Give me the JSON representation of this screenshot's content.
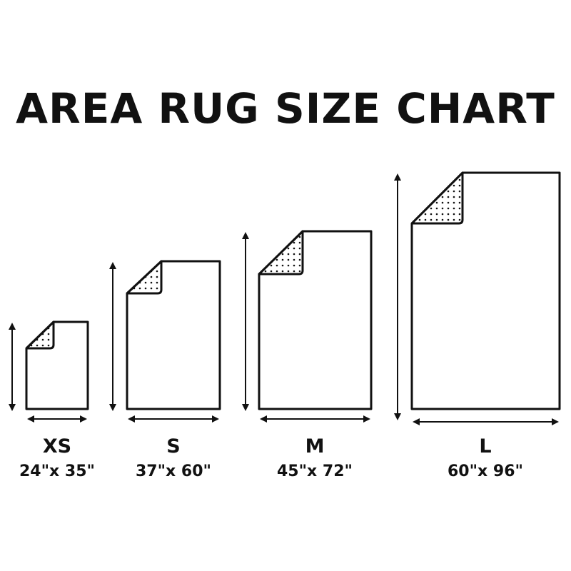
{
  "title": "AREA RUG SIZE CHART",
  "rugs": [
    {
      "size": "XS",
      "dimensions": "24\"x 35\""
    },
    {
      "size": "S",
      "dimensions": "37\"x 60\""
    },
    {
      "size": "M",
      "dimensions": "45\"x 72\""
    },
    {
      "size": "L",
      "dimensions": "60\"x 96\""
    }
  ],
  "colors": {
    "line": "#111111",
    "background": "#ffffff"
  }
}
